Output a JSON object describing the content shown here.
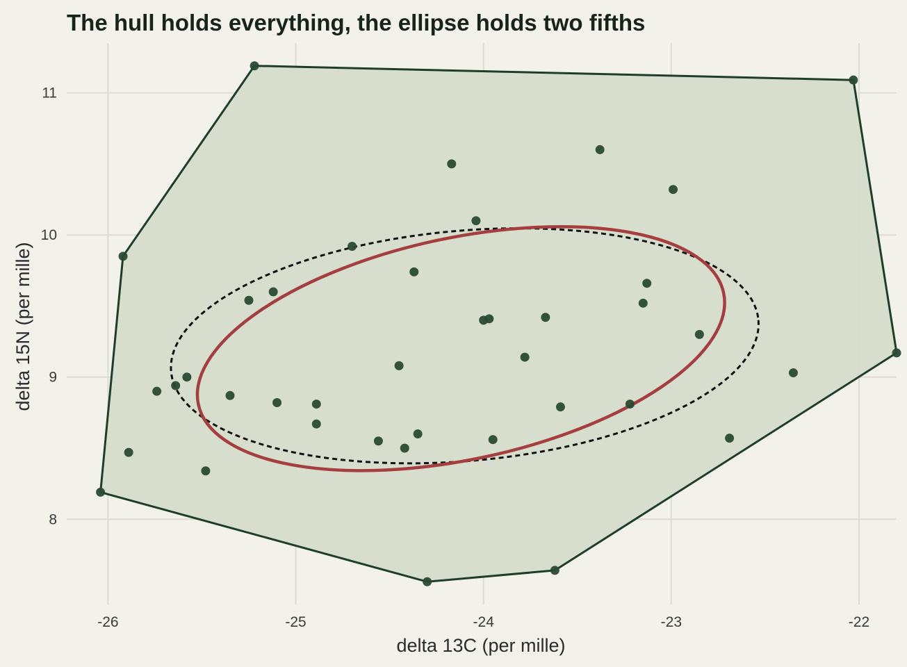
{
  "chart_data": {
    "type": "scatter",
    "title": "The hull holds everything, the ellipse holds two fifths",
    "xlabel": "delta 13C (per mille)",
    "ylabel": "delta 15N (per mille)",
    "xlim": [
      -26.22,
      -21.8
    ],
    "ylim": [
      7.4,
      11.35
    ],
    "x_ticks": [
      -26,
      -25,
      -24,
      -23,
      -22
    ],
    "y_ticks": [
      8,
      9,
      10,
      11
    ],
    "grid": true,
    "points": [
      {
        "x": -26.04,
        "y": 8.19
      },
      {
        "x": -25.92,
        "y": 9.85
      },
      {
        "x": -25.89,
        "y": 8.47
      },
      {
        "x": -25.74,
        "y": 8.9
      },
      {
        "x": -25.64,
        "y": 8.94
      },
      {
        "x": -25.58,
        "y": 9.0
      },
      {
        "x": -25.48,
        "y": 8.34
      },
      {
        "x": -25.35,
        "y": 8.87
      },
      {
        "x": -25.25,
        "y": 9.54
      },
      {
        "x": -25.22,
        "y": 11.19
      },
      {
        "x": -25.12,
        "y": 9.6
      },
      {
        "x": -25.1,
        "y": 8.82
      },
      {
        "x": -24.89,
        "y": 8.81
      },
      {
        "x": -24.89,
        "y": 8.67
      },
      {
        "x": -24.7,
        "y": 9.92
      },
      {
        "x": -24.56,
        "y": 8.55
      },
      {
        "x": -24.45,
        "y": 9.08
      },
      {
        "x": -24.42,
        "y": 8.5
      },
      {
        "x": -24.37,
        "y": 9.74
      },
      {
        "x": -24.35,
        "y": 8.6
      },
      {
        "x": -24.3,
        "y": 7.56
      },
      {
        "x": -24.17,
        "y": 10.5
      },
      {
        "x": -24.04,
        "y": 10.1
      },
      {
        "x": -24.0,
        "y": 9.4
      },
      {
        "x": -23.97,
        "y": 9.41
      },
      {
        "x": -23.95,
        "y": 8.56
      },
      {
        "x": -23.78,
        "y": 9.14
      },
      {
        "x": -23.67,
        "y": 9.42
      },
      {
        "x": -23.62,
        "y": 7.64
      },
      {
        "x": -23.59,
        "y": 8.79
      },
      {
        "x": -23.38,
        "y": 10.6
      },
      {
        "x": -23.22,
        "y": 8.81
      },
      {
        "x": -23.15,
        "y": 9.52
      },
      {
        "x": -23.13,
        "y": 9.66
      },
      {
        "x": -22.99,
        "y": 10.32
      },
      {
        "x": -22.85,
        "y": 9.3
      },
      {
        "x": -22.69,
        "y": 8.57
      },
      {
        "x": -22.35,
        "y": 9.03
      },
      {
        "x": -22.03,
        "y": 11.09
      },
      {
        "x": -21.8,
        "y": 9.17
      }
    ],
    "hull": [
      {
        "x": -26.04,
        "y": 8.19
      },
      {
        "x": -25.92,
        "y": 9.85
      },
      {
        "x": -25.22,
        "y": 11.19
      },
      {
        "x": -22.03,
        "y": 11.09
      },
      {
        "x": -21.8,
        "y": 9.17
      },
      {
        "x": -23.62,
        "y": 7.64
      },
      {
        "x": -24.3,
        "y": 7.56
      }
    ],
    "ellipse_solid": {
      "cx": -24.12,
      "cy": 9.2,
      "rx": 1.43,
      "ry": 0.78,
      "angle_deg": 12
    },
    "ellipse_dashed": {
      "cx": -24.1,
      "cy": 9.22,
      "rx": 1.57,
      "ry": 0.81,
      "angle_deg": 5
    },
    "colors": {
      "background": "#f2f1ea",
      "hull_fill": "#d5dccb",
      "hull_stroke": "#1f3d2b",
      "points": "#2a4a34",
      "ellipse_solid": "#a53f3f",
      "ellipse_dashed": "#111111",
      "grid": "#dddcd2"
    }
  }
}
